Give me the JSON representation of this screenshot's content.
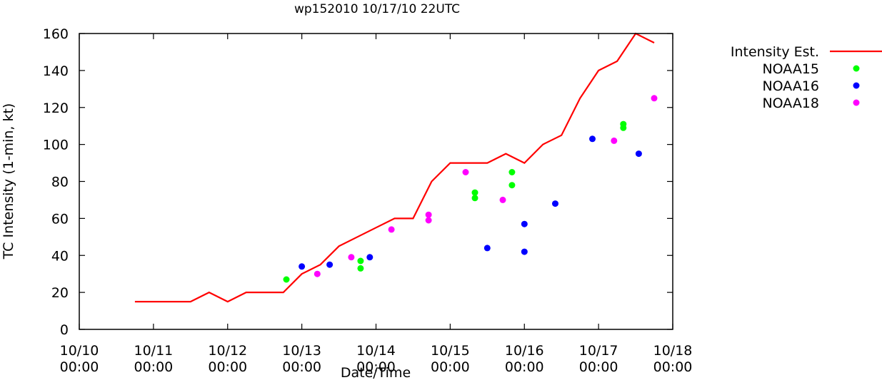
{
  "chart_data": {
    "type": "line",
    "title": "wp152010 10/17/10 22UTC",
    "xlabel": "Date/Time",
    "ylabel": "TC Intensity (1-min, kt)",
    "xlim": [
      "2010-10-10T00:00",
      "2010-10-18T00:00"
    ],
    "ylim": [
      0,
      160
    ],
    "y_ticks": [
      0,
      20,
      40,
      60,
      80,
      100,
      120,
      140,
      160
    ],
    "x_ticks": [
      {
        "t": "2010-10-10T00:00",
        "date": "10/10",
        "time": "00:00"
      },
      {
        "t": "2010-10-11T00:00",
        "date": "10/11",
        "time": "00:00"
      },
      {
        "t": "2010-10-12T00:00",
        "date": "10/12",
        "time": "00:00"
      },
      {
        "t": "2010-10-13T00:00",
        "date": "10/13",
        "time": "00:00"
      },
      {
        "t": "2010-10-14T00:00",
        "date": "10/14",
        "time": "00:00"
      },
      {
        "t": "2010-10-15T00:00",
        "date": "10/15",
        "time": "00:00"
      },
      {
        "t": "2010-10-16T00:00",
        "date": "10/16",
        "time": "00:00"
      },
      {
        "t": "2010-10-17T00:00",
        "date": "10/17",
        "time": "00:00"
      },
      {
        "t": "2010-10-18T00:00",
        "date": "10/18",
        "time": "00:00"
      }
    ],
    "grid": false,
    "legend_position": "outside-right",
    "series": [
      {
        "name": "Intensity Est.",
        "style": "line",
        "color": "#ff0000",
        "points": [
          [
            "2010-10-10T18:00",
            15
          ],
          [
            "2010-10-11T00:00",
            15
          ],
          [
            "2010-10-11T06:00",
            15
          ],
          [
            "2010-10-11T12:00",
            15
          ],
          [
            "2010-10-11T18:00",
            20
          ],
          [
            "2010-10-12T00:00",
            15
          ],
          [
            "2010-10-12T06:00",
            20
          ],
          [
            "2010-10-12T12:00",
            20
          ],
          [
            "2010-10-12T18:00",
            20
          ],
          [
            "2010-10-13T00:00",
            30
          ],
          [
            "2010-10-13T06:00",
            35
          ],
          [
            "2010-10-13T12:00",
            45
          ],
          [
            "2010-10-13T18:00",
            50
          ],
          [
            "2010-10-14T00:00",
            55
          ],
          [
            "2010-10-14T06:00",
            60
          ],
          [
            "2010-10-14T12:00",
            60
          ],
          [
            "2010-10-14T18:00",
            80
          ],
          [
            "2010-10-15T00:00",
            90
          ],
          [
            "2010-10-15T06:00",
            90
          ],
          [
            "2010-10-15T12:00",
            90
          ],
          [
            "2010-10-15T18:00",
            95
          ],
          [
            "2010-10-16T00:00",
            90
          ],
          [
            "2010-10-16T06:00",
            100
          ],
          [
            "2010-10-16T12:00",
            105
          ],
          [
            "2010-10-16T18:00",
            125
          ],
          [
            "2010-10-17T00:00",
            140
          ],
          [
            "2010-10-17T06:00",
            145
          ],
          [
            "2010-10-17T12:00",
            160
          ],
          [
            "2010-10-17T18:00",
            155
          ]
        ]
      },
      {
        "name": "NOAA15",
        "style": "points",
        "color": "#00ff00",
        "points": [
          [
            "2010-10-12T19:00",
            27
          ],
          [
            "2010-10-13T19:00",
            37
          ],
          [
            "2010-10-13T19:00",
            33
          ],
          [
            "2010-10-15T08:00",
            74
          ],
          [
            "2010-10-15T08:00",
            71
          ],
          [
            "2010-10-15T20:00",
            85
          ],
          [
            "2010-10-15T20:00",
            78
          ],
          [
            "2010-10-17T08:00",
            111
          ],
          [
            "2010-10-17T08:00",
            109
          ]
        ]
      },
      {
        "name": "NOAA16",
        "style": "points",
        "color": "#0000ff",
        "points": [
          [
            "2010-10-13T00:00",
            34
          ],
          [
            "2010-10-13T09:00",
            35
          ],
          [
            "2010-10-13T22:00",
            39
          ],
          [
            "2010-10-15T12:00",
            44
          ],
          [
            "2010-10-16T00:00",
            57
          ],
          [
            "2010-10-16T00:00",
            42
          ],
          [
            "2010-10-16T10:00",
            68
          ],
          [
            "2010-10-16T22:00",
            103
          ],
          [
            "2010-10-17T13:00",
            95
          ]
        ]
      },
      {
        "name": "NOAA18",
        "style": "points",
        "color": "#ff00ff",
        "points": [
          [
            "2010-10-13T05:00",
            30
          ],
          [
            "2010-10-13T16:00",
            39
          ],
          [
            "2010-10-14T05:00",
            54
          ],
          [
            "2010-10-14T17:00",
            62
          ],
          [
            "2010-10-14T17:00",
            59
          ],
          [
            "2010-10-15T05:00",
            85
          ],
          [
            "2010-10-15T17:00",
            70
          ],
          [
            "2010-10-17T05:00",
            102
          ],
          [
            "2010-10-17T18:00",
            125
          ]
        ]
      }
    ]
  }
}
